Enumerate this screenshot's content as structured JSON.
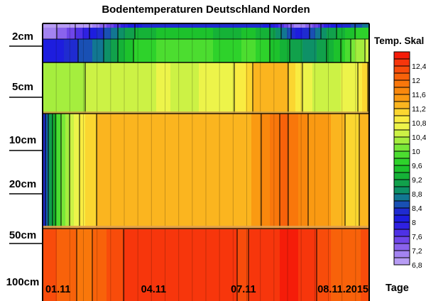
{
  "title": "Bodentemperaturen Deutschland Norden",
  "legend": {
    "title": "Temp. Skal",
    "labels": [
      "12,4",
      "12",
      "11,6",
      "11,2",
      "10,8",
      "10,4",
      "10",
      "9,6",
      "9,2",
      "8,8",
      "8,4",
      "8",
      "7,6",
      "7,2",
      "6,8"
    ]
  },
  "x_axis": {
    "title": "Tage",
    "tick_labels": [
      "01.11",
      "04.11",
      "07.11",
      "08.11.2015"
    ],
    "tick_positions": [
      0.01,
      0.34,
      0.615,
      0.885
    ]
  },
  "y_axis": {
    "labels": [
      "2cm",
      "5cm",
      "10cm",
      "20cm",
      "50cm",
      "100cm"
    ]
  },
  "chart_data": {
    "type": "heatmap",
    "title": "Bodentemperaturen Deutschland Norden",
    "xlabel": "Tage",
    "x_tick_labels": [
      "01.11",
      "04.11",
      "07.11",
      "08.11.2015"
    ],
    "depth_labels": [
      "2cm",
      "5cm",
      "10cm",
      "20cm",
      "50cm",
      "100cm"
    ],
    "steps_per_day": 3,
    "temperature_scale": {
      "title": "Temp. Skal",
      "min": 6.8,
      "max": 12.8,
      "step": 0.2,
      "label_step": 0.4,
      "labels_top_to_bottom": [
        "12,4",
        "12",
        "11,6",
        "11,2",
        "10,8",
        "10,4",
        "10",
        "9,6",
        "9,2",
        "8,8",
        "8,4",
        "8",
        "7,6",
        "7,2",
        "6,8"
      ],
      "colors_low_to_high": [
        "#B79CF4",
        "#A383F1",
        "#8A63ED",
        "#6F46E9",
        "#4E31E5",
        "#2F21E2",
        "#1D1DDE",
        "#1F2BD0",
        "#1950B4",
        "#127792",
        "#0E9167",
        "#11A14B",
        "#15B237",
        "#1DC22C",
        "#2ED22B",
        "#4CDD30",
        "#78E838",
        "#A5EE3E",
        "#CCF245",
        "#EDF44A",
        "#F9EC41",
        "#FBD630",
        "#FBB51F",
        "#FA9A12",
        "#F9880D",
        "#F9770B",
        "#F8620A",
        "#F84C0B",
        "#F7360C",
        "#F51C09"
      ]
    },
    "series": [
      {
        "depth": "surface_strip",
        "values": [
          7.0,
          7.2,
          7.5,
          7.9,
          8.3,
          8.7,
          9.1,
          9.3,
          9.4,
          9.4,
          9.4,
          9.4,
          9.4,
          9.3,
          9.4,
          9.4,
          9.2,
          8.7,
          8.1,
          8.5,
          9.0,
          9.3,
          9.6,
          9.8
        ]
      },
      {
        "depth": "2cm",
        "values": [
          8.0,
          8.1,
          8.3,
          8.5,
          8.7,
          9.1,
          9.5,
          9.75,
          9.8,
          9.8,
          9.8,
          9.8,
          9.8,
          9.7,
          9.8,
          9.8,
          9.6,
          9.3,
          9.05,
          8.9,
          9.2,
          9.6,
          10.2,
          10.5
        ]
      },
      {
        "depth": "5cm",
        "values": [
          10.3,
          10.3,
          10.35,
          10.4,
          10.4,
          10.45,
          10.5,
          10.55,
          10.6,
          10.6,
          10.55,
          10.6,
          10.65,
          10.7,
          10.9,
          11.3,
          11.35,
          11.3,
          10.9,
          10.6,
          10.55,
          10.6,
          10.7,
          11.25
        ]
      },
      {
        "depth": "10cm",
        "values": [
          8.2,
          9.8,
          10.5,
          11.0,
          11.25,
          11.3,
          11.25,
          11.25,
          11.3,
          11.3,
          11.25,
          11.25,
          11.3,
          11.25,
          11.3,
          11.45,
          11.8,
          12.1,
          11.8,
          11.5,
          11.45,
          11.25,
          11.1,
          11.45
        ]
      },
      {
        "depth": "20cm",
        "values": [
          8.2,
          9.8,
          10.5,
          11.0,
          11.25,
          11.3,
          11.25,
          11.25,
          11.3,
          11.3,
          11.25,
          11.25,
          11.3,
          11.25,
          11.3,
          11.45,
          11.8,
          12.1,
          11.8,
          11.5,
          11.45,
          11.25,
          11.1,
          11.45
        ]
      },
      {
        "depth": "50cm",
        "values": [
          12.3,
          12.2,
          12.05,
          11.9,
          12.1,
          12.3,
          12.45,
          12.5,
          12.5,
          12.45,
          12.4,
          12.5,
          12.45,
          12.5,
          12.35,
          12.45,
          12.5,
          12.65,
          12.6,
          12.45,
          12.25,
          12.1,
          12.05,
          12.4
        ]
      },
      {
        "depth": "100cm",
        "values": [
          12.3,
          12.2,
          12.05,
          11.9,
          12.1,
          12.3,
          12.45,
          12.5,
          12.5,
          12.45,
          12.4,
          12.5,
          12.45,
          12.5,
          12.35,
          12.45,
          12.5,
          12.65,
          12.6,
          12.45,
          12.25,
          12.1,
          12.05,
          12.4
        ]
      }
    ]
  }
}
